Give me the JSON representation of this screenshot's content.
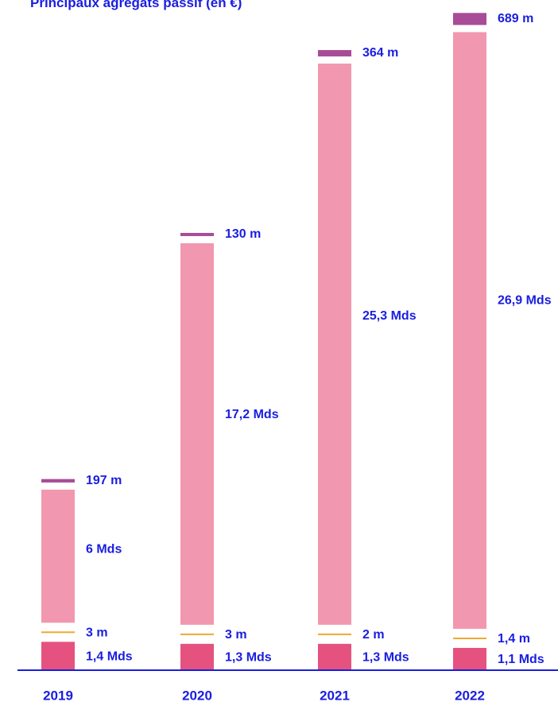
{
  "chart_data": {
    "type": "bar",
    "stacked": true,
    "title": "Principaux agrégats passif (en €)",
    "categories": [
      "2019",
      "2020",
      "2021",
      "2022"
    ],
    "series": [
      {
        "key": "bottom",
        "values": [
          1.4,
          1.3,
          1.3,
          1.1
        ],
        "labels": [
          "1,4 Mds",
          "1,3 Mds",
          "1,3 Mds",
          "1,1 Mds"
        ]
      },
      {
        "key": "thin",
        "values": [
          0.003,
          0.003,
          0.002,
          0.0014
        ],
        "labels": [
          "3 m",
          "3 m",
          "2 m",
          "1,4 m"
        ]
      },
      {
        "key": "main",
        "values": [
          6,
          17.2,
          25.3,
          26.9
        ],
        "labels": [
          "6 Mds",
          "17,2 Mds",
          "25,3 Mds",
          "26,9 Mds"
        ]
      },
      {
        "key": "top",
        "values": [
          0.197,
          0.13,
          0.364,
          0.689
        ],
        "labels": [
          "197 m",
          "130 m",
          "364 m",
          "689 m"
        ]
      }
    ],
    "colors": {
      "bottom": "#e5527f",
      "thin": "#f0a830",
      "main": "#f297b0",
      "top": "#a84c98",
      "text": "#1a1ee0",
      "baseline": "#1a1ee0"
    },
    "legend": "none",
    "grid": false
  }
}
